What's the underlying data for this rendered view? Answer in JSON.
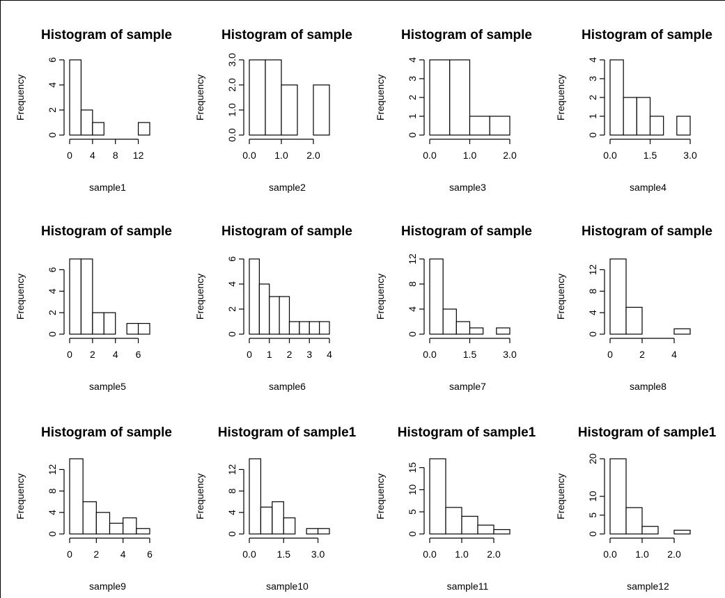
{
  "chart_data": [
    {
      "type": "bar",
      "title": "Histogram of sample",
      "xlabel": "sample1",
      "ylabel": "Frequency",
      "breaks": [
        0,
        2,
        4,
        6,
        8,
        10,
        12,
        14
      ],
      "counts": [
        6,
        2,
        1,
        0,
        0,
        0,
        1
      ],
      "xticks": [
        0,
        4,
        8,
        12
      ],
      "xtick_labels": [
        "0",
        "4",
        "8",
        "12"
      ],
      "yticks": [
        0,
        2,
        4,
        6
      ],
      "ytick_labels": [
        "0",
        "2",
        "4",
        "6"
      ],
      "ylim": [
        0,
        6
      ]
    },
    {
      "type": "bar",
      "title": "Histogram of sample",
      "xlabel": "sample2",
      "ylabel": "Frequency",
      "breaks": [
        0,
        0.5,
        1,
        1.5,
        2,
        2.5
      ],
      "counts": [
        3,
        3,
        2,
        0,
        2
      ],
      "xticks": [
        0,
        1,
        2
      ],
      "xtick_labels": [
        "0.0",
        "1.0",
        "2.0"
      ],
      "yticks": [
        0,
        1,
        2,
        3
      ],
      "ytick_labels": [
        "0.0",
        "1.0",
        "2.0",
        "3.0"
      ],
      "ylim": [
        0,
        3
      ]
    },
    {
      "type": "bar",
      "title": "Histogram of sample",
      "xlabel": "sample3",
      "ylabel": "Frequency",
      "breaks": [
        0,
        0.5,
        1,
        1.5,
        2
      ],
      "counts": [
        4,
        4,
        1,
        1
      ],
      "xticks": [
        0,
        1,
        2
      ],
      "xtick_labels": [
        "0.0",
        "1.0",
        "2.0"
      ],
      "yticks": [
        0,
        1,
        2,
        3,
        4
      ],
      "ytick_labels": [
        "0",
        "1",
        "2",
        "3",
        "4"
      ],
      "ylim": [
        0,
        4
      ]
    },
    {
      "type": "bar",
      "title": "Histogram of sample",
      "xlabel": "sample4",
      "ylabel": "Frequency",
      "breaks": [
        0,
        0.5,
        1,
        1.5,
        2,
        2.5,
        3
      ],
      "counts": [
        4,
        2,
        2,
        1,
        0,
        1
      ],
      "xticks": [
        0,
        1.5,
        3
      ],
      "xtick_labels": [
        "0.0",
        "1.5",
        "3.0"
      ],
      "yticks": [
        0,
        1,
        2,
        3,
        4
      ],
      "ytick_labels": [
        "0",
        "1",
        "2",
        "3",
        "4"
      ],
      "ylim": [
        0,
        4
      ]
    },
    {
      "type": "bar",
      "title": "Histogram of sample",
      "xlabel": "sample5",
      "ylabel": "Frequency",
      "breaks": [
        0,
        1,
        2,
        3,
        4,
        5,
        6,
        7
      ],
      "counts": [
        7,
        7,
        2,
        2,
        0,
        1,
        1
      ],
      "xticks": [
        0,
        2,
        4,
        6
      ],
      "xtick_labels": [
        "0",
        "2",
        "4",
        "6"
      ],
      "yticks": [
        0,
        2,
        4,
        6
      ],
      "ytick_labels": [
        "0",
        "2",
        "4",
        "6"
      ],
      "ylim": [
        0,
        7
      ]
    },
    {
      "type": "bar",
      "title": "Histogram of sample",
      "xlabel": "sample6",
      "ylabel": "Frequency",
      "breaks": [
        0,
        0.5,
        1,
        1.5,
        2,
        2.5,
        3,
        3.5,
        4
      ],
      "counts": [
        6,
        4,
        3,
        3,
        1,
        1,
        1,
        1
      ],
      "xticks": [
        0,
        1,
        2,
        3,
        4
      ],
      "xtick_labels": [
        "0",
        "1",
        "2",
        "3",
        "4"
      ],
      "yticks": [
        0,
        2,
        4,
        6
      ],
      "ytick_labels": [
        "0",
        "2",
        "4",
        "6"
      ],
      "ylim": [
        0,
        6
      ]
    },
    {
      "type": "bar",
      "title": "Histogram of sample",
      "xlabel": "sample7",
      "ylabel": "Frequency",
      "breaks": [
        0,
        0.5,
        1,
        1.5,
        2,
        2.5,
        3
      ],
      "counts": [
        12,
        4,
        2,
        1,
        0,
        1
      ],
      "xticks": [
        0,
        1.5,
        3
      ],
      "xtick_labels": [
        "0.0",
        "1.5",
        "3.0"
      ],
      "yticks": [
        0,
        4,
        8,
        12
      ],
      "ytick_labels": [
        "0",
        "4",
        "8",
        "12"
      ],
      "ylim": [
        0,
        12
      ]
    },
    {
      "type": "bar",
      "title": "Histogram of sample",
      "xlabel": "sample8",
      "ylabel": "Frequency",
      "breaks": [
        0,
        1,
        2,
        3,
        4,
        5
      ],
      "counts": [
        14,
        5,
        0,
        0,
        1
      ],
      "xticks": [
        0,
        2,
        4
      ],
      "xtick_labels": [
        "0",
        "2",
        "4"
      ],
      "yticks": [
        0,
        4,
        8,
        12
      ],
      "ytick_labels": [
        "0",
        "4",
        "8",
        "12"
      ],
      "ylim": [
        0,
        14
      ]
    },
    {
      "type": "bar",
      "title": "Histogram of sample",
      "xlabel": "sample9",
      "ylabel": "Frequency",
      "breaks": [
        0,
        1,
        2,
        3,
        4,
        5,
        6
      ],
      "counts": [
        14,
        6,
        4,
        2,
        3,
        1
      ],
      "xticks": [
        0,
        2,
        4,
        6
      ],
      "xtick_labels": [
        "0",
        "2",
        "4",
        "6"
      ],
      "yticks": [
        0,
        4,
        8,
        12
      ],
      "ytick_labels": [
        "0",
        "4",
        "8",
        "12"
      ],
      "ylim": [
        0,
        14
      ]
    },
    {
      "type": "bar",
      "title": "Histogram of sample1",
      "xlabel": "sample10",
      "ylabel": "Frequency",
      "breaks": [
        0,
        0.5,
        1,
        1.5,
        2,
        2.5,
        3,
        3.5
      ],
      "counts": [
        14,
        5,
        6,
        3,
        0,
        1,
        1
      ],
      "xticks": [
        0,
        1.5,
        3
      ],
      "xtick_labels": [
        "0.0",
        "1.5",
        "3.0"
      ],
      "yticks": [
        0,
        4,
        8,
        12
      ],
      "ytick_labels": [
        "0",
        "4",
        "8",
        "12"
      ],
      "ylim": [
        0,
        14
      ]
    },
    {
      "type": "bar",
      "title": "Histogram of sample1",
      "xlabel": "sample11",
      "ylabel": "Frequency",
      "breaks": [
        0,
        0.5,
        1,
        1.5,
        2,
        2.5
      ],
      "counts": [
        17,
        6,
        4,
        2,
        1
      ],
      "xticks": [
        0,
        1,
        2
      ],
      "xtick_labels": [
        "0.0",
        "1.0",
        "2.0"
      ],
      "yticks": [
        0,
        5,
        10,
        15
      ],
      "ytick_labels": [
        "0",
        "5",
        "10",
        "15"
      ],
      "ylim": [
        0,
        17
      ]
    },
    {
      "type": "bar",
      "title": "Histogram of sample1",
      "xlabel": "sample12",
      "ylabel": "Frequency",
      "breaks": [
        0,
        0.5,
        1,
        1.5,
        2,
        2.5
      ],
      "counts": [
        20,
        7,
        2,
        0,
        1
      ],
      "xticks": [
        0,
        1,
        2
      ],
      "xtick_labels": [
        "0.0",
        "1.0",
        "2.0"
      ],
      "yticks": [
        0,
        5,
        10,
        20
      ],
      "ytick_labels": [
        "0",
        "5",
        "10",
        "20"
      ],
      "ylim": [
        0,
        20
      ]
    }
  ]
}
